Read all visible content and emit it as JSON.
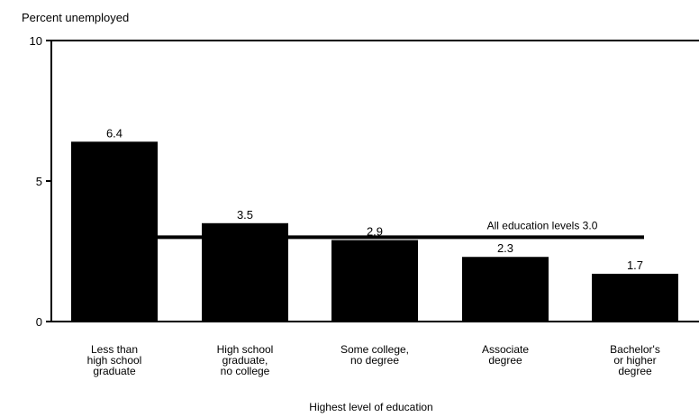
{
  "chart_data": {
    "type": "bar",
    "ylabel": "Percent unemployed",
    "xlabel": "Highest level of education",
    "ylim": [
      0,
      10
    ],
    "yticks": [
      "0",
      "5",
      "10"
    ],
    "grid": false,
    "categories": [
      [
        "Less than",
        "high school",
        "graduate"
      ],
      [
        "High school",
        "graduate,",
        "no college"
      ],
      [
        "Some college,",
        "no degree"
      ],
      [
        "Associate",
        "degree"
      ],
      [
        "Bachelor's",
        "or higher",
        "degree"
      ]
    ],
    "values": [
      6.4,
      3.5,
      2.9,
      2.3,
      1.7
    ],
    "value_labels": [
      "6.4",
      "3.5",
      "2.9",
      "2.3",
      "1.7"
    ],
    "bar_color": "#000000",
    "reference_line": {
      "value": 3.0,
      "label": "All education levels  3.0"
    }
  }
}
